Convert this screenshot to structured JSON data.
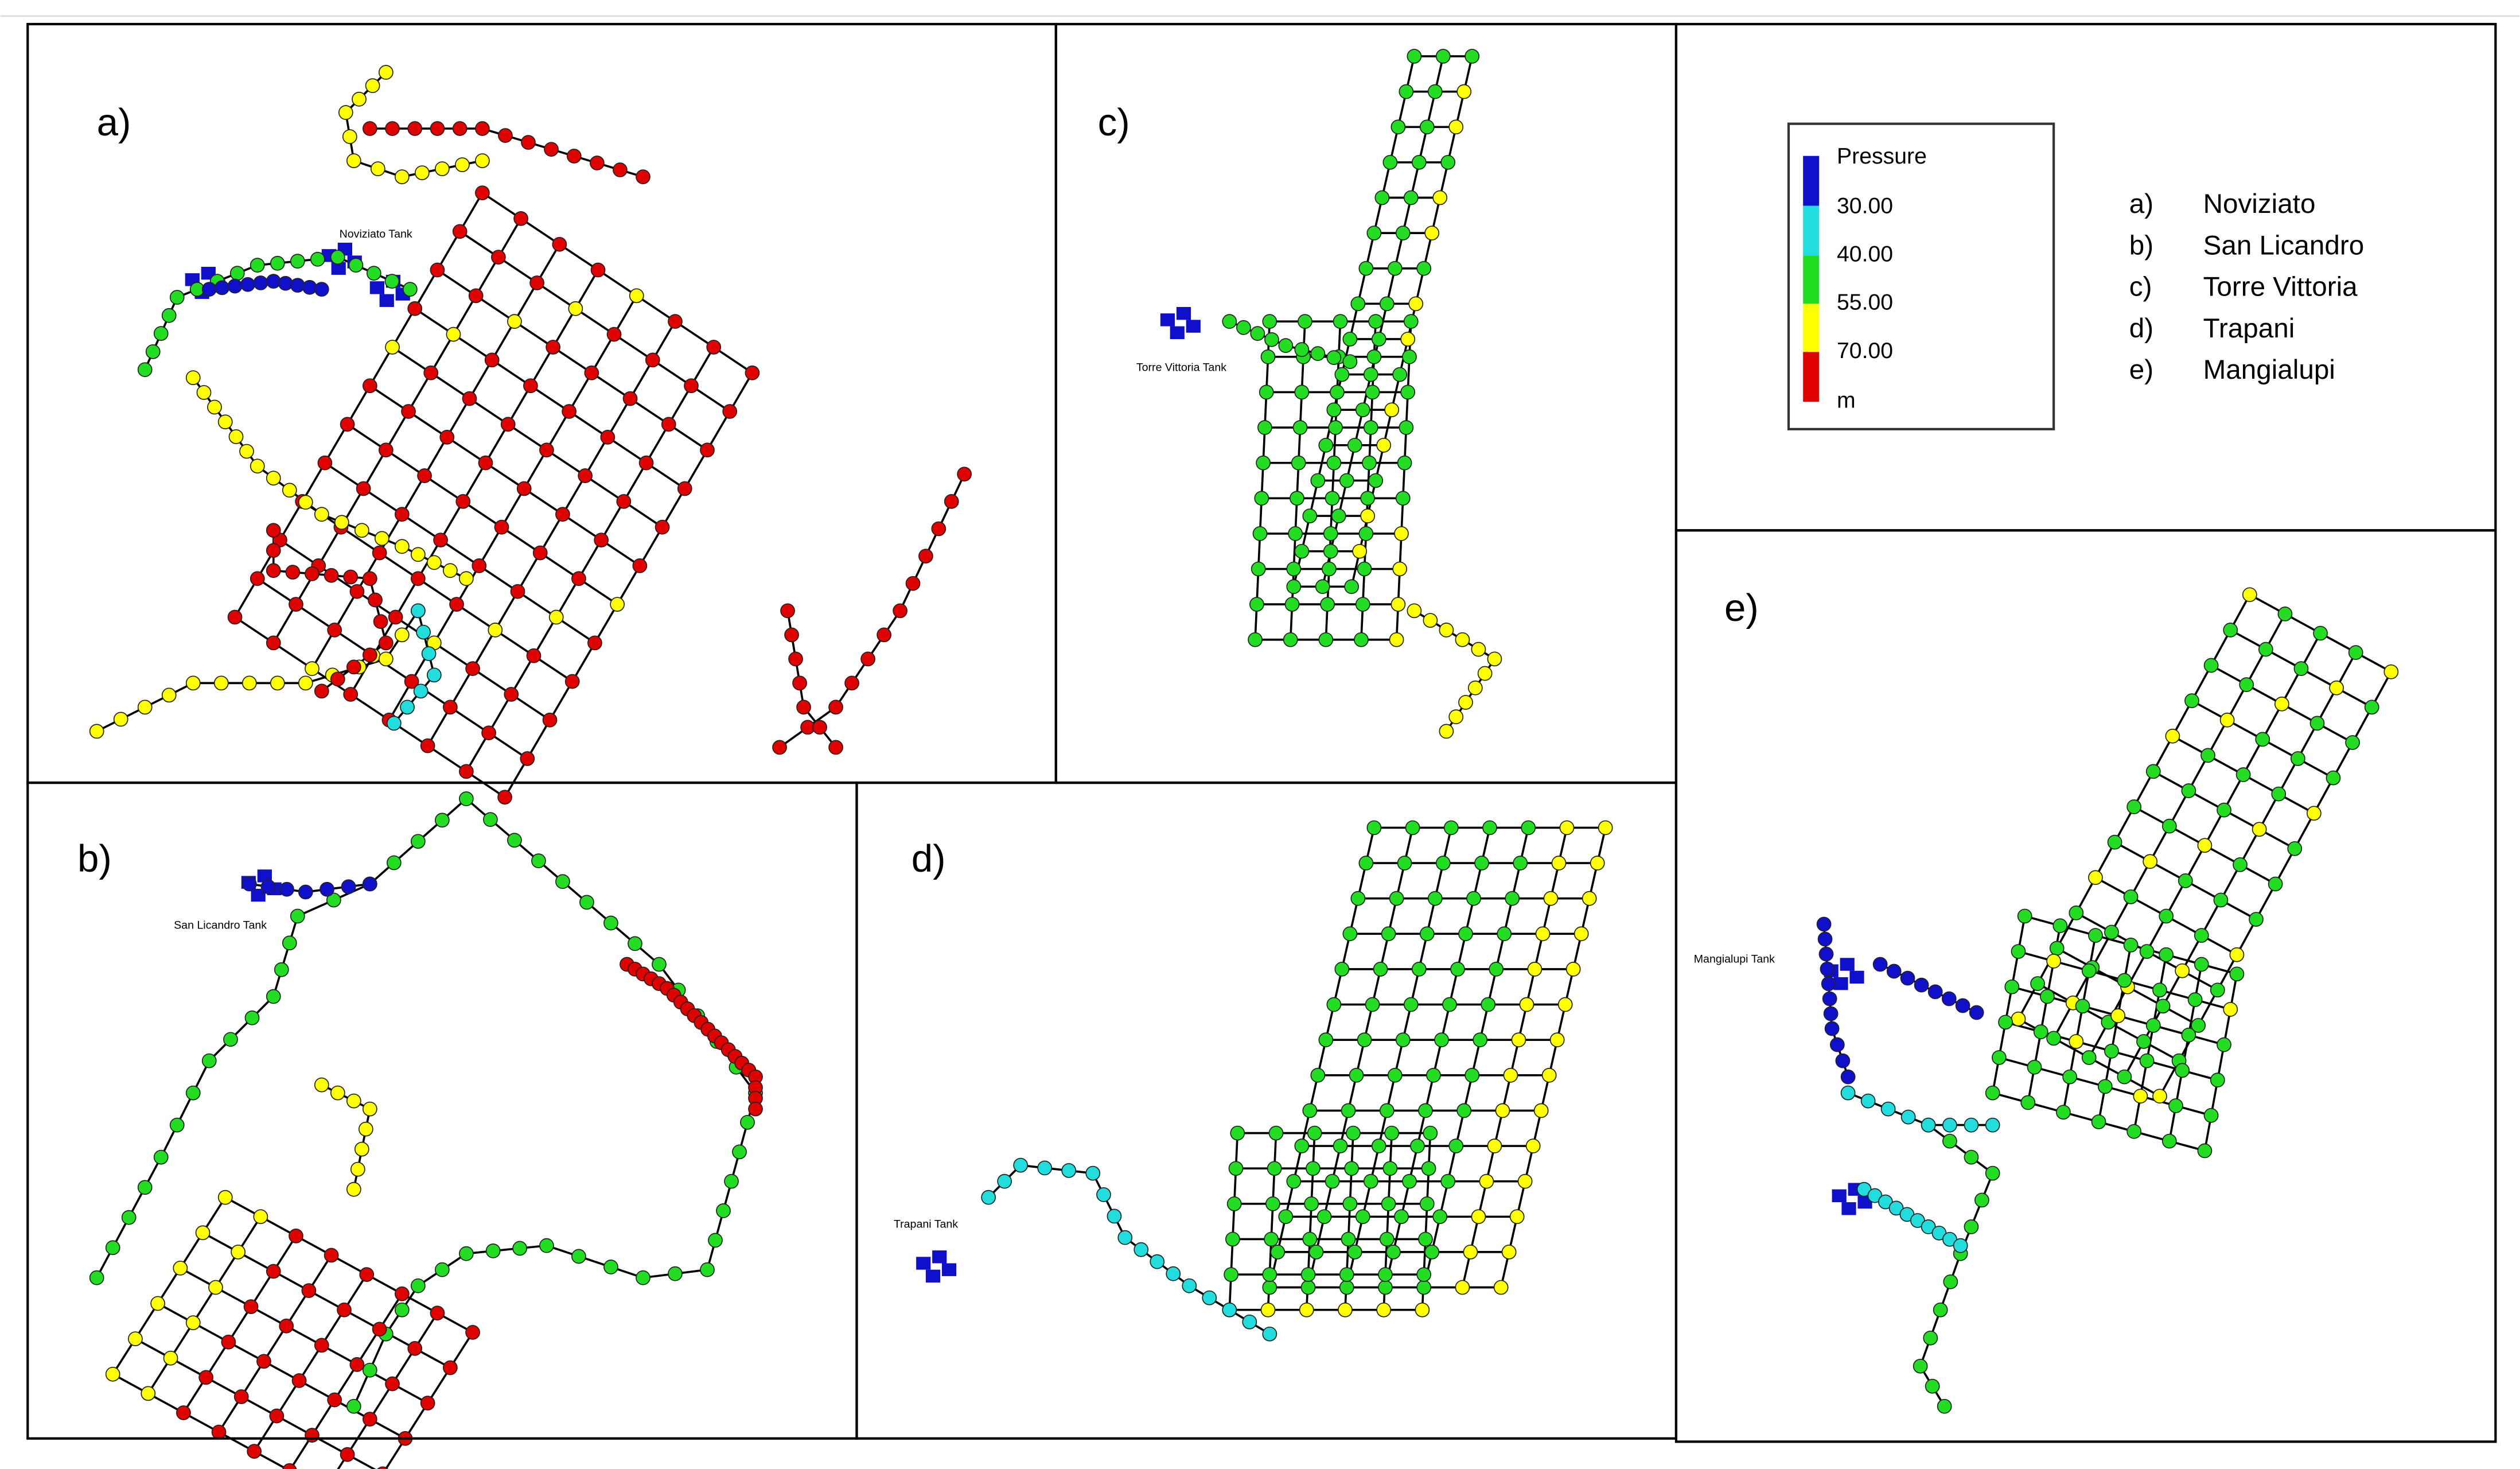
{
  "panels": [
    {
      "label": "a)",
      "tank": "Noviziato Tank"
    },
    {
      "label": "b)",
      "tank": "San Licandro Tank"
    },
    {
      "label": "c)",
      "tank": "Torre Vittoria Tank"
    },
    {
      "label": "d)",
      "tank": "Trapani Tank"
    },
    {
      "label": "e)",
      "tank": "Mangialupi Tank"
    }
  ],
  "legend": {
    "title": "Pressure",
    "levels": [
      "30.00",
      "40.00",
      "55.00",
      "70.00"
    ],
    "unit": "m"
  },
  "key": [
    {
      "letter": "a)",
      "name": "Noviziato"
    },
    {
      "letter": "b)",
      "name": "San Licandro"
    },
    {
      "letter": "c)",
      "name": "Torre Vittoria"
    },
    {
      "letter": "d)",
      "name": "Trapani"
    },
    {
      "letter": "e)",
      "name": "Mangialupi"
    }
  ]
}
